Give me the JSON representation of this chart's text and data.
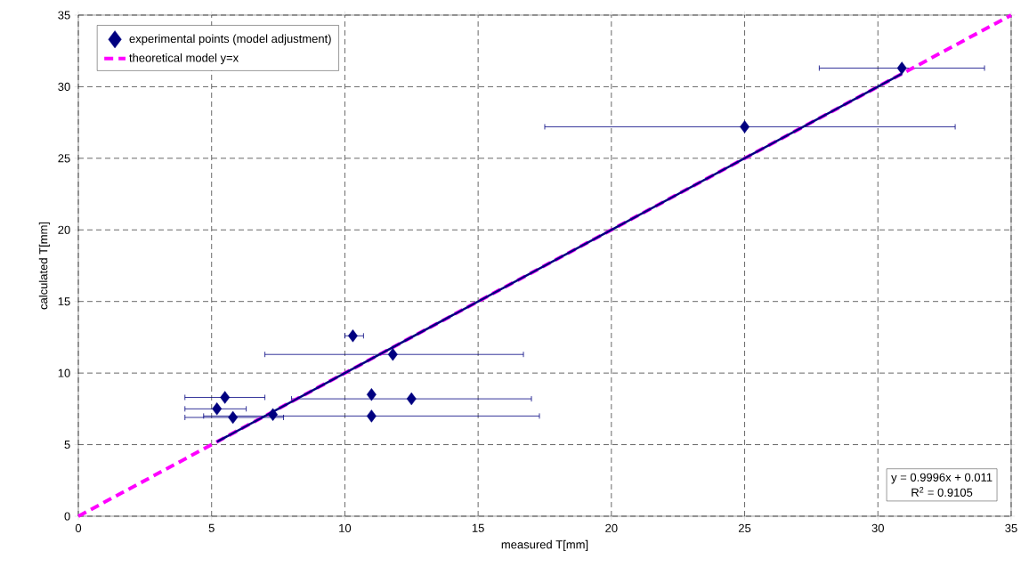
{
  "chart_data": {
    "type": "scatter",
    "xlabel": "measured T[mm]",
    "ylabel": "calculated T[mm]",
    "xlim": [
      0,
      35
    ],
    "ylim": [
      0,
      35
    ],
    "xticks": [
      0,
      5,
      10,
      15,
      20,
      25,
      30,
      35
    ],
    "yticks": [
      0,
      5,
      10,
      15,
      20,
      25,
      30,
      35
    ],
    "grid": true,
    "legend": "top left",
    "series": [
      {
        "name": "experimental points (model adjustment)",
        "color": "#000080",
        "marker": "diamond",
        "x": [
          5.5,
          5.2,
          5.8,
          7.3,
          11.0,
          11.0,
          12.5,
          10.3,
          11.8,
          25.0,
          30.9
        ],
        "values": [
          8.3,
          7.5,
          6.9,
          7.1,
          7.0,
          8.5,
          8.2,
          12.6,
          11.3,
          27.2,
          31.3
        ],
        "xerrors": [
          [
            4.0,
            7.0
          ],
          [
            4.0,
            6.3
          ],
          [
            4.0,
            7.7
          ],
          null,
          [
            4.7,
            17.3
          ],
          null,
          [
            8.0,
            17.0
          ],
          [
            10.0,
            10.7
          ],
          [
            7.0,
            16.7
          ],
          [
            17.5,
            32.9
          ],
          [
            27.8,
            34.0
          ]
        ]
      },
      {
        "name": "theoretical model y=x",
        "type": "line",
        "color": "#ff00ff",
        "line_style": "dashed",
        "marker": "none",
        "x": [
          0,
          35
        ],
        "values": [
          0,
          35
        ]
      },
      {
        "type": "line",
        "color": "#000080",
        "line_style": "solid",
        "marker": "none",
        "x": [
          5.2,
          30.9
        ],
        "values": [
          5.2,
          30.9
        ]
      }
    ],
    "annotations": [
      "y = 0.9996x + 0.011",
      "R$^{2}$ = 0.9105"
    ]
  }
}
